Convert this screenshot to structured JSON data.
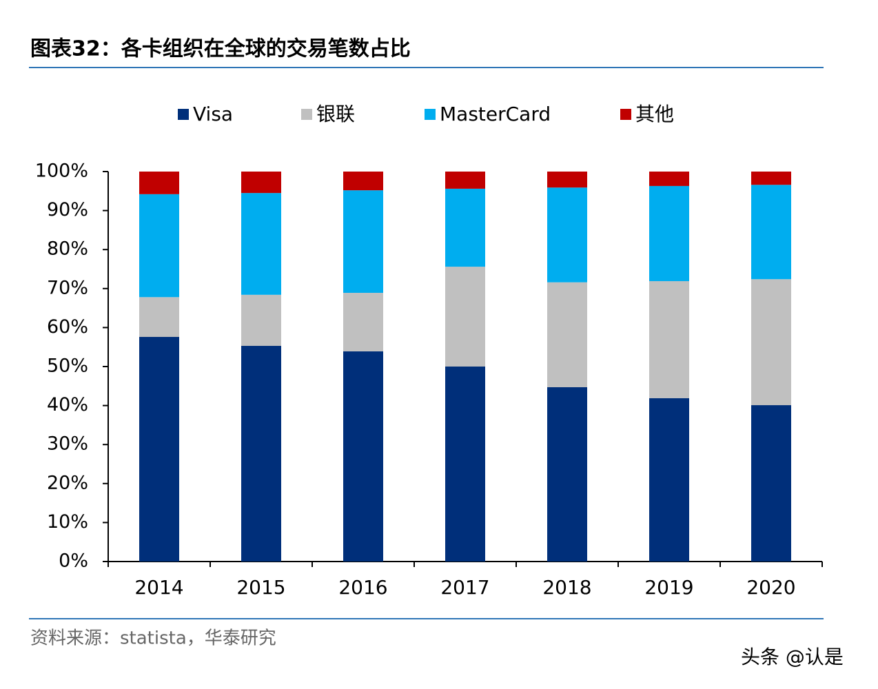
{
  "chart_data": {
    "type": "stacked_bar",
    "title": "图表32：各卡组织在全球的交易笔数占比",
    "source": "资料来源：statista，华泰研究",
    "watermark": "头条 @认是",
    "categories": [
      "2014",
      "2015",
      "2016",
      "2017",
      "2018",
      "2019",
      "2020"
    ],
    "series": [
      {
        "name": "Visa",
        "color": "#002f7a",
        "values": [
          57.6,
          55.3,
          53.9,
          50.0,
          44.7,
          41.9,
          40.1
        ]
      },
      {
        "name": "银联",
        "color": "#c0c0c0",
        "values": [
          10.2,
          13.1,
          15.0,
          25.6,
          26.9,
          30.0,
          32.3
        ]
      },
      {
        "name": "MasterCard",
        "color": "#00adef",
        "values": [
          26.4,
          26.1,
          26.3,
          20.0,
          24.3,
          24.4,
          24.2
        ]
      },
      {
        "name": "其他",
        "color": "#c00000",
        "values": [
          5.8,
          5.5,
          4.8,
          4.4,
          4.1,
          3.7,
          3.4
        ]
      }
    ],
    "ylim": [
      0,
      100
    ],
    "yticks": [
      {
        "value": 0,
        "label": "0%"
      },
      {
        "value": 10,
        "label": "10%"
      },
      {
        "value": 20,
        "label": "20%"
      },
      {
        "value": 30,
        "label": "30%"
      },
      {
        "value": 40,
        "label": "40%"
      },
      {
        "value": 50,
        "label": "50%"
      },
      {
        "value": 60,
        "label": "60%"
      },
      {
        "value": 70,
        "label": "70%"
      },
      {
        "value": 80,
        "label": "80%"
      },
      {
        "value": 90,
        "label": "90%"
      },
      {
        "value": 100,
        "label": "100%"
      }
    ],
    "grid": false
  }
}
